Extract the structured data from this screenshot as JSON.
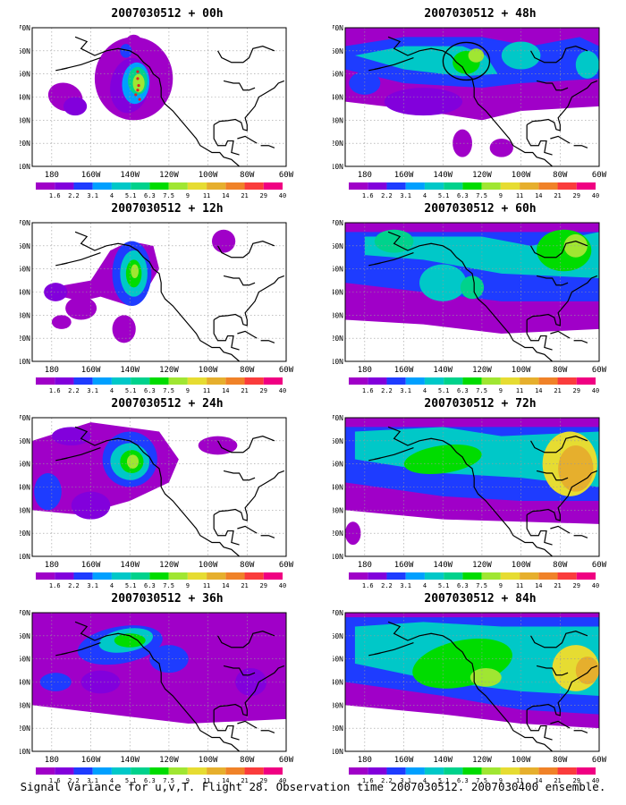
{
  "panels": [
    {
      "id": "p00",
      "title": "2007030512 + 00h",
      "col": 0,
      "row": 0,
      "overlay": "dots"
    },
    {
      "id": "p48",
      "title": "2007030512 + 48h",
      "col": 1,
      "row": 0,
      "overlay": "ellipse"
    },
    {
      "id": "p12",
      "title": "2007030512 + 12h",
      "col": 0,
      "row": 1,
      "overlay": ""
    },
    {
      "id": "p60",
      "title": "2007030512 + 60h",
      "col": 1,
      "row": 1,
      "overlay": ""
    },
    {
      "id": "p24",
      "title": "2007030512 + 24h",
      "col": 0,
      "row": 2,
      "overlay": ""
    },
    {
      "id": "p72",
      "title": "2007030512 + 72h",
      "col": 1,
      "row": 2,
      "overlay": ""
    },
    {
      "id": "p36",
      "title": "2007030512 + 36h",
      "col": 0,
      "row": 3,
      "overlay": ""
    },
    {
      "id": "p84",
      "title": "2007030512 + 84h",
      "col": 1,
      "row": 3,
      "overlay": ""
    }
  ],
  "lat_labels": [
    "70N",
    "60N",
    "50N",
    "40N",
    "30N",
    "20N",
    "10N"
  ],
  "lon_labels": [
    "180",
    "160W",
    "140W",
    "120W",
    "100W",
    "80W",
    "60W"
  ],
  "colorbar": {
    "labels": [
      "1.6",
      "2.2",
      "3.1",
      "4",
      "5.1",
      "6.3",
      "7.5",
      "9",
      "11",
      "14",
      "21",
      "29",
      "40"
    ],
    "colors": [
      "#a000c8",
      "#8200dc",
      "#1e3cff",
      "#00a0ff",
      "#00c8c8",
      "#00d28c",
      "#00dc00",
      "#a0e632",
      "#e6dc32",
      "#e6af2d",
      "#f08228",
      "#fa3c3c",
      "#f00082"
    ]
  },
  "caption": "Signal Variance for u,v,T. Flight 28. Observation time 2007030512. 2007030400 ensemble."
}
